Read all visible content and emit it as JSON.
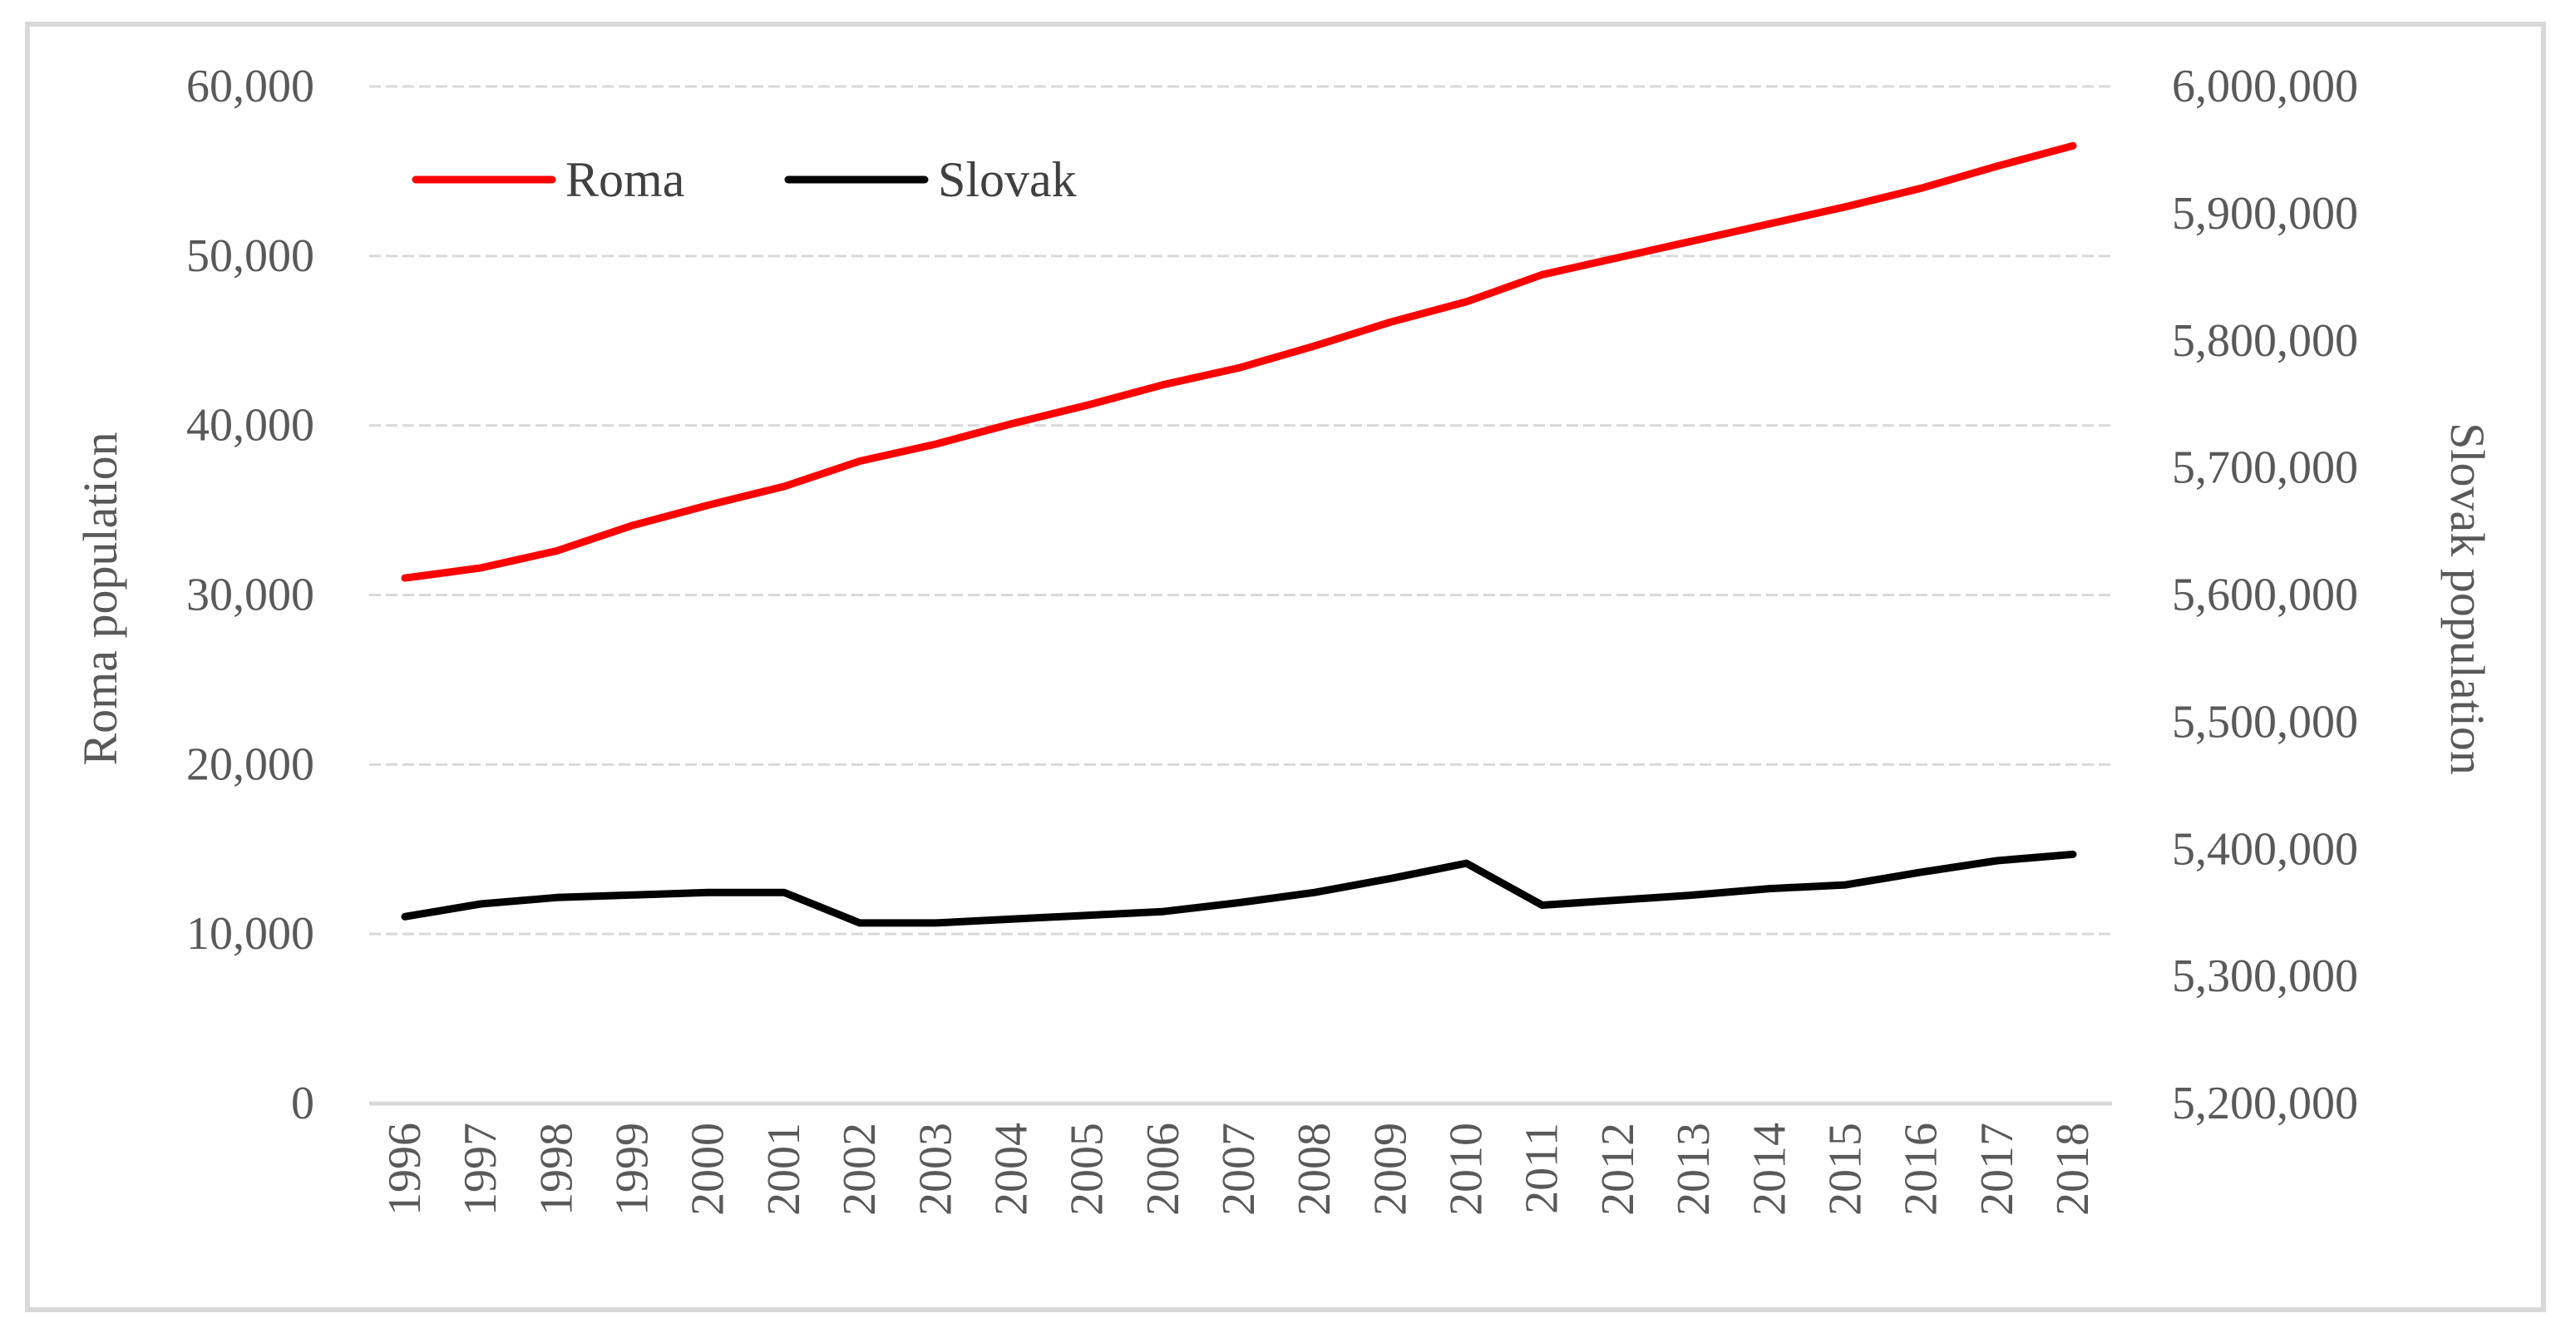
{
  "chart_data": {
    "type": "line",
    "title": "",
    "x": [
      1996,
      1997,
      1998,
      1999,
      2000,
      2001,
      2002,
      2003,
      2004,
      2005,
      2006,
      2007,
      2008,
      2009,
      2010,
      2011,
      2012,
      2013,
      2014,
      2015,
      2016,
      2017,
      2018
    ],
    "xlabels": [
      "1996",
      "1997",
      "1998",
      "1999",
      "2000",
      "2001",
      "2002",
      "2003",
      "2004",
      "2005",
      "2006",
      "2007",
      "2008",
      "2009",
      "2010",
      "2011",
      "2012",
      "2013",
      "2014",
      "2015",
      "2016",
      "2017",
      "2018"
    ],
    "ylabel_left": "Roma population",
    "ylabel_right": "Slovak population",
    "ylim_left": [
      0,
      60000
    ],
    "ylim_right": [
      5200000,
      6000000
    ],
    "yticks_left": [
      "0",
      "10,000",
      "20,000",
      "30,000",
      "40,000",
      "50,000",
      "60,000"
    ],
    "yticks_right": [
      "5,200,000",
      "5,300,000",
      "5,400,000",
      "5,500,000",
      "5,600,000",
      "5,700,000",
      "5,800,000",
      "5,900,000",
      "6,000,000"
    ],
    "grid": true,
    "legend_position": "top-left",
    "series": [
      {
        "name": "Roma",
        "axis": "left",
        "color": "#ff0000",
        "values": [
          31000,
          31600,
          32600,
          34100,
          35300,
          36400,
          37900,
          38900,
          40100,
          41200,
          42400,
          43400,
          44700,
          46100,
          47300,
          48900,
          49900,
          50900,
          51900,
          52900,
          54000,
          55300,
          56500
        ]
      },
      {
        "name": "Slovak",
        "axis": "right",
        "color": "#000000",
        "values": [
          5347000,
          5357000,
          5362000,
          5364000,
          5366000,
          5366000,
          5342000,
          5342000,
          5345000,
          5348000,
          5351000,
          5358000,
          5366000,
          5377000,
          5389000,
          5356000,
          5360000,
          5364000,
          5369000,
          5372000,
          5382000,
          5391000,
          5396000
        ]
      }
    ]
  }
}
